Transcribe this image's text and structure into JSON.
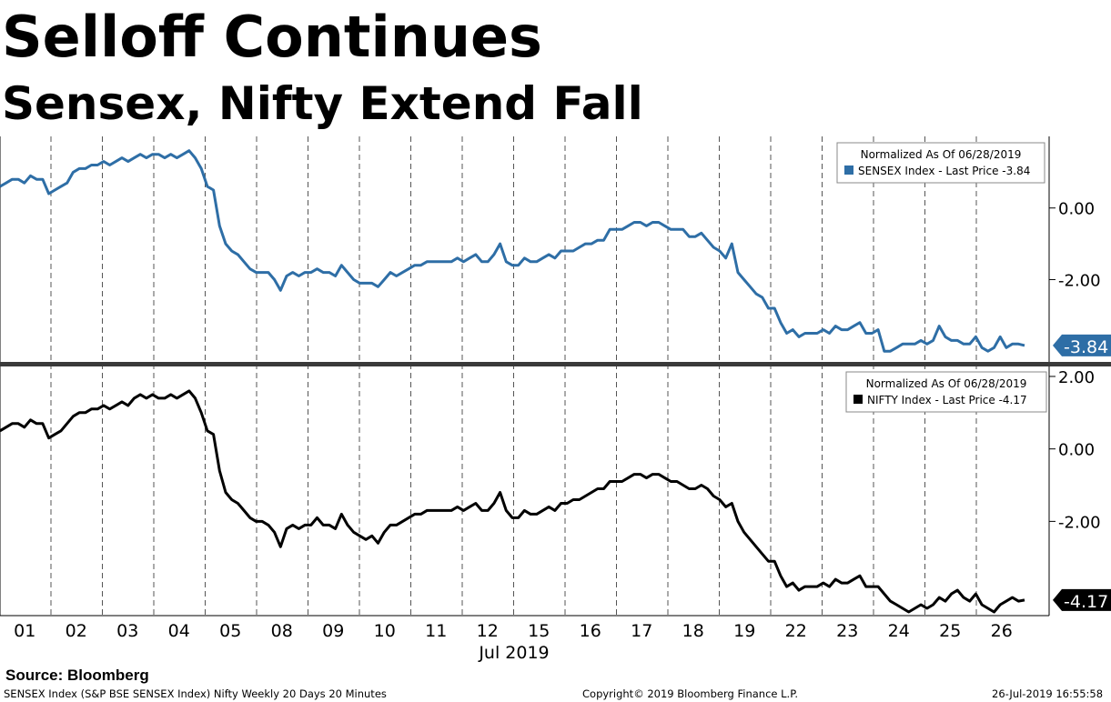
{
  "title": "Selloff Continues",
  "subtitle": "Sensex, Nifty Extend Fall",
  "chart_data": [
    {
      "type": "line",
      "panel": "top",
      "legend": {
        "header": "Normalized As Of 06/28/2019",
        "entry": "SENSEX Index - Last Price -3.84",
        "placement": "top-right"
      },
      "color": "#2e6ea6",
      "ylim": [
        -4.3,
        2.0
      ],
      "yticks": [
        0,
        -2
      ],
      "ytick_labels": [
        "0.00",
        "-2.00"
      ],
      "last_value_label": "-3.84",
      "series": [
        {
          "name": "SENSEX Index",
          "values": [
            0.6,
            0.7,
            0.8,
            0.8,
            0.7,
            0.9,
            0.8,
            0.8,
            0.4,
            0.5,
            0.6,
            0.7,
            1.0,
            1.1,
            1.1,
            1.2,
            1.2,
            1.3,
            1.2,
            1.3,
            1.4,
            1.3,
            1.4,
            1.5,
            1.4,
            1.5,
            1.5,
            1.4,
            1.5,
            1.4,
            1.5,
            1.6,
            1.4,
            1.1,
            0.6,
            0.5,
            -0.5,
            -1.0,
            -1.2,
            -1.3,
            -1.5,
            -1.7,
            -1.8,
            -1.8,
            -1.8,
            -2.0,
            -2.3,
            -1.9,
            -1.8,
            -1.9,
            -1.8,
            -1.8,
            -1.7,
            -1.8,
            -1.8,
            -1.9,
            -1.6,
            -1.8,
            -2.0,
            -2.1,
            -2.1,
            -2.1,
            -2.2,
            -2.0,
            -1.8,
            -1.9,
            -1.8,
            -1.7,
            -1.6,
            -1.6,
            -1.5,
            -1.5,
            -1.5,
            -1.5,
            -1.5,
            -1.4,
            -1.5,
            -1.4,
            -1.3,
            -1.5,
            -1.5,
            -1.3,
            -1.0,
            -1.5,
            -1.6,
            -1.6,
            -1.4,
            -1.5,
            -1.5,
            -1.4,
            -1.3,
            -1.4,
            -1.2,
            -1.2,
            -1.2,
            -1.1,
            -1.0,
            -1.0,
            -0.9,
            -0.9,
            -0.6,
            -0.6,
            -0.6,
            -0.5,
            -0.4,
            -0.4,
            -0.5,
            -0.4,
            -0.4,
            -0.5,
            -0.6,
            -0.6,
            -0.6,
            -0.8,
            -0.8,
            -0.7,
            -0.9,
            -1.1,
            -1.2,
            -1.4,
            -1.0,
            -1.8,
            -2.0,
            -2.2,
            -2.4,
            -2.5,
            -2.8,
            -2.8,
            -3.2,
            -3.5,
            -3.4,
            -3.6,
            -3.5,
            -3.5,
            -3.5,
            -3.4,
            -3.5,
            -3.3,
            -3.4,
            -3.4,
            -3.3,
            -3.2,
            -3.5,
            -3.5,
            -3.4,
            -4.0,
            -4.0,
            -3.9,
            -3.8,
            -3.8,
            -3.8,
            -3.7,
            -3.8,
            -3.7,
            -3.3,
            -3.6,
            -3.7,
            -3.7,
            -3.8,
            -3.8,
            -3.6,
            -3.9,
            -4.0,
            -3.9,
            -3.6,
            -3.9,
            -3.8,
            -3.8,
            -3.84
          ]
        }
      ]
    },
    {
      "type": "line",
      "panel": "bottom",
      "legend": {
        "header": "Normalized As Of 06/28/2019",
        "entry": "NIFTY Index - Last Price -4.17",
        "placement": "top-right"
      },
      "color": "#000000",
      "ylim": [
        -4.6,
        2.2
      ],
      "yticks": [
        2,
        0,
        -2
      ],
      "ytick_labels": [
        "2.00",
        "0.00",
        "-2.00"
      ],
      "last_value_label": "-4.17",
      "series": [
        {
          "name": "NIFTY Index",
          "values": [
            0.5,
            0.6,
            0.7,
            0.7,
            0.6,
            0.8,
            0.7,
            0.7,
            0.3,
            0.4,
            0.5,
            0.7,
            0.9,
            1.0,
            1.0,
            1.1,
            1.1,
            1.2,
            1.1,
            1.2,
            1.3,
            1.2,
            1.4,
            1.5,
            1.4,
            1.5,
            1.4,
            1.4,
            1.5,
            1.4,
            1.5,
            1.6,
            1.4,
            1.0,
            0.5,
            0.4,
            -0.6,
            -1.2,
            -1.4,
            -1.5,
            -1.7,
            -1.9,
            -2.0,
            -2.0,
            -2.1,
            -2.3,
            -2.7,
            -2.2,
            -2.1,
            -2.2,
            -2.1,
            -2.1,
            -1.9,
            -2.1,
            -2.1,
            -2.2,
            -1.8,
            -2.1,
            -2.3,
            -2.4,
            -2.5,
            -2.4,
            -2.6,
            -2.3,
            -2.1,
            -2.1,
            -2.0,
            -1.9,
            -1.8,
            -1.8,
            -1.7,
            -1.7,
            -1.7,
            -1.7,
            -1.7,
            -1.6,
            -1.7,
            -1.6,
            -1.5,
            -1.7,
            -1.7,
            -1.5,
            -1.2,
            -1.7,
            -1.9,
            -1.9,
            -1.7,
            -1.8,
            -1.8,
            -1.7,
            -1.6,
            -1.7,
            -1.5,
            -1.5,
            -1.4,
            -1.4,
            -1.3,
            -1.2,
            -1.1,
            -1.1,
            -0.9,
            -0.9,
            -0.9,
            -0.8,
            -0.7,
            -0.7,
            -0.8,
            -0.7,
            -0.7,
            -0.8,
            -0.9,
            -0.9,
            -1.0,
            -1.1,
            -1.1,
            -1.0,
            -1.1,
            -1.3,
            -1.4,
            -1.6,
            -1.5,
            -2.0,
            -2.3,
            -2.5,
            -2.7,
            -2.9,
            -3.1,
            -3.1,
            -3.5,
            -3.8,
            -3.7,
            -3.9,
            -3.8,
            -3.8,
            -3.8,
            -3.7,
            -3.8,
            -3.6,
            -3.7,
            -3.7,
            -3.6,
            -3.5,
            -3.8,
            -3.8,
            -3.8,
            -4.0,
            -4.2,
            -4.3,
            -4.4,
            -4.5,
            -4.4,
            -4.3,
            -4.4,
            -4.3,
            -4.1,
            -4.2,
            -4.0,
            -3.9,
            -4.1,
            -4.2,
            -4.0,
            -4.3,
            -4.4,
            -4.5,
            -4.3,
            -4.2,
            -4.1,
            -4.2,
            -4.17
          ]
        }
      ]
    }
  ],
  "x_axis": {
    "categories": [
      "01",
      "02",
      "03",
      "04",
      "05",
      "08",
      "09",
      "10",
      "11",
      "12",
      "15",
      "16",
      "17",
      "18",
      "19",
      "22",
      "23",
      "24",
      "25",
      "26"
    ],
    "month_label": "Jul 2019"
  },
  "footer": {
    "source": "Source: Bloomberg",
    "description": "SENSEX Index (S&P BSE SENSEX Index) Nifty Weekly 20 Days 20 Minutes",
    "copyright": "Copyright© 2019 Bloomberg Finance L.P.",
    "timestamp": "26-Jul-2019 16:55:58"
  }
}
